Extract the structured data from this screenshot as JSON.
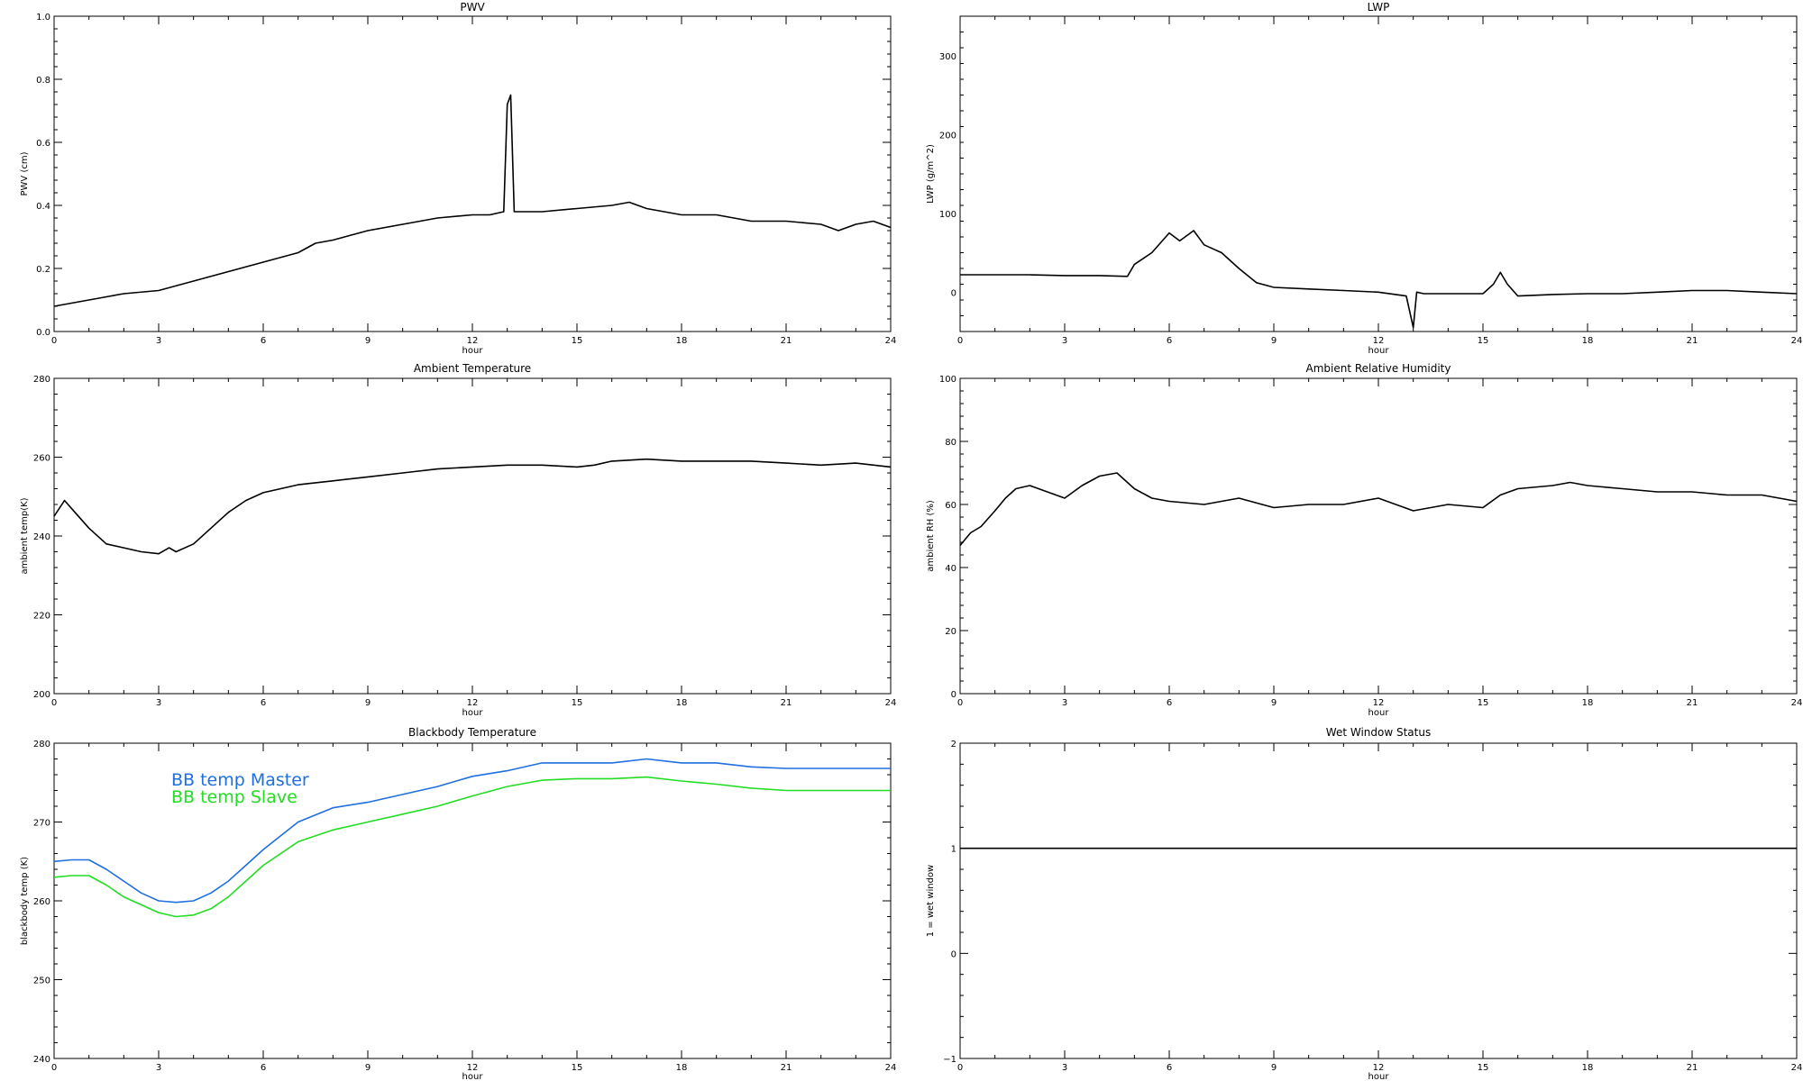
{
  "chart_data": [
    {
      "id": "pwv",
      "type": "line",
      "title": "PWV",
      "xlabel": "hour",
      "ylabel": "PWV (cm)",
      "xlim": [
        0,
        24
      ],
      "ylim": [
        0,
        1
      ],
      "xticks": [
        "0",
        "3",
        "6",
        "9",
        "12",
        "15",
        "18",
        "21",
        "24"
      ],
      "yticks": [
        "0.0",
        "0.2",
        "0.4",
        "0.6",
        "0.8",
        "1.0"
      ],
      "line_color": "#000000",
      "series": [
        {
          "x": [
            0,
            0.5,
            1,
            1.5,
            2,
            3,
            4,
            5,
            6,
            7,
            7.5,
            8,
            9,
            10,
            11,
            12,
            12.5,
            12.9,
            13.0,
            13.1,
            13.2,
            13.5,
            14,
            15,
            16,
            16.5,
            17,
            18,
            19,
            20,
            21,
            22,
            22.5,
            23,
            23.5,
            24
          ],
          "y": [
            0.08,
            0.09,
            0.1,
            0.11,
            0.12,
            0.13,
            0.16,
            0.19,
            0.22,
            0.25,
            0.28,
            0.29,
            0.32,
            0.34,
            0.36,
            0.37,
            0.37,
            0.38,
            0.72,
            0.75,
            0.38,
            0.38,
            0.38,
            0.39,
            0.4,
            0.41,
            0.39,
            0.37,
            0.37,
            0.35,
            0.35,
            0.34,
            0.32,
            0.34,
            0.35,
            0.33
          ]
        }
      ]
    },
    {
      "id": "lwp",
      "type": "line",
      "title": "LWP",
      "xlabel": "hour",
      "ylabel": "LWP (g/m^2)",
      "xlim": [
        0,
        24
      ],
      "ylim": [
        -50,
        350
      ],
      "xticks": [
        "0",
        "3",
        "6",
        "9",
        "12",
        "15",
        "18",
        "21",
        "24"
      ],
      "yticks": [
        "0",
        "100",
        "200",
        "300"
      ],
      "ytick_values": [
        0,
        100,
        200,
        300
      ],
      "line_color": "#000000",
      "series": [
        {
          "x": [
            0,
            1,
            2,
            3,
            4,
            4.8,
            5,
            5.5,
            6,
            6.3,
            6.7,
            7,
            7.5,
            8,
            8.5,
            9,
            10,
            11,
            12,
            12.8,
            13,
            13.1,
            13.3,
            14,
            15,
            15.3,
            15.5,
            15.7,
            16,
            17,
            18,
            19,
            20,
            21,
            22,
            23,
            24
          ],
          "y": [
            22,
            22,
            22,
            21,
            21,
            20,
            35,
            50,
            75,
            65,
            78,
            60,
            50,
            30,
            12,
            6,
            4,
            2,
            0,
            -5,
            -45,
            0,
            -2,
            -2,
            -2,
            10,
            25,
            10,
            -5,
            -3,
            -2,
            -2,
            0,
            2,
            2,
            0,
            -2
          ]
        }
      ]
    },
    {
      "id": "ambient_temp",
      "type": "line",
      "title": "Ambient Temperature",
      "xlabel": "hour",
      "ylabel": "ambient temp(K)",
      "xlim": [
        0,
        24
      ],
      "ylim": [
        200,
        280
      ],
      "xticks": [
        "0",
        "3",
        "6",
        "9",
        "12",
        "15",
        "18",
        "21",
        "24"
      ],
      "yticks": [
        "200",
        "220",
        "240",
        "260",
        "280"
      ],
      "ytick_values": [
        200,
        220,
        240,
        260,
        280
      ],
      "line_color": "#000000",
      "series": [
        {
          "x": [
            0,
            0.3,
            0.6,
            1,
            1.5,
            2,
            2.5,
            3,
            3.3,
            3.5,
            4,
            4.5,
            5,
            5.5,
            6,
            7,
            8,
            9,
            10,
            11,
            12,
            13,
            14,
            15,
            15.5,
            16,
            17,
            18,
            19,
            20,
            21,
            22,
            23,
            24
          ],
          "y": [
            245,
            249,
            246,
            242,
            238,
            237,
            236,
            235.5,
            237,
            236,
            238,
            242,
            246,
            249,
            251,
            253,
            254,
            255,
            256,
            257,
            257.5,
            258,
            258,
            257.5,
            258,
            259,
            259.5,
            259,
            259,
            259,
            258.5,
            258,
            258.5,
            257.5
          ]
        }
      ]
    },
    {
      "id": "ambient_rh",
      "type": "line",
      "title": "Ambient Relative Humidity",
      "xlabel": "hour",
      "ylabel": "ambient RH (%)",
      "xlim": [
        0,
        24
      ],
      "ylim": [
        0,
        100
      ],
      "xticks": [
        "0",
        "3",
        "6",
        "9",
        "12",
        "15",
        "18",
        "21",
        "24"
      ],
      "yticks": [
        "0",
        "20",
        "40",
        "60",
        "80",
        "100"
      ],
      "ytick_values": [
        0,
        20,
        40,
        60,
        80,
        100
      ],
      "line_color": "#000000",
      "series": [
        {
          "x": [
            0,
            0.3,
            0.6,
            1,
            1.3,
            1.6,
            2,
            2.5,
            3,
            3.5,
            4,
            4.5,
            5,
            5.5,
            6,
            7,
            8,
            9,
            10,
            11,
            12,
            12.5,
            13,
            13.5,
            14,
            15,
            15.5,
            16,
            17,
            17.5,
            18,
            19,
            20,
            21,
            22,
            23,
            24
          ],
          "y": [
            47,
            51,
            53,
            58,
            62,
            65,
            66,
            64,
            62,
            66,
            69,
            70,
            65,
            62,
            61,
            60,
            62,
            59,
            60,
            60,
            62,
            60,
            58,
            59,
            60,
            59,
            63,
            65,
            66,
            67,
            66,
            65,
            64,
            64,
            63,
            63,
            61
          ]
        }
      ]
    },
    {
      "id": "bb_temp",
      "type": "line",
      "title": "Blackbody Temperature",
      "xlabel": "hour",
      "ylabel": "blackbody temp (K)",
      "xlim": [
        0,
        24
      ],
      "ylim": [
        240,
        280
      ],
      "xticks": [
        "0",
        "3",
        "6",
        "9",
        "12",
        "15",
        "18",
        "21",
        "24"
      ],
      "yticks": [
        "240",
        "250",
        "260",
        "270",
        "280"
      ],
      "ytick_values": [
        240,
        250,
        260,
        270,
        280
      ],
      "legend": [
        "BB temp Master",
        "BB temp Slave"
      ],
      "series": [
        {
          "name": "BB temp Master",
          "color": "#1f6fe0",
          "x": [
            0,
            0.5,
            1,
            1.5,
            2,
            2.5,
            3,
            3.5,
            4,
            4.5,
            5,
            5.5,
            6,
            7,
            8,
            9,
            10,
            11,
            12,
            13,
            14,
            15,
            16,
            17,
            18,
            19,
            20,
            21,
            22,
            23,
            24
          ],
          "y": [
            265,
            265.2,
            265.2,
            264,
            262.5,
            261,
            260,
            259.8,
            260,
            261,
            262.5,
            264.5,
            266.5,
            270,
            271.8,
            272.5,
            273.5,
            274.5,
            275.8,
            276.5,
            277.5,
            277.5,
            277.5,
            278,
            277.5,
            277.5,
            277,
            276.8,
            276.8,
            276.8,
            276.8
          ]
        },
        {
          "name": "BB temp Slave",
          "color": "#22dd22",
          "x": [
            0,
            0.5,
            1,
            1.5,
            2,
            2.5,
            3,
            3.5,
            4,
            4.5,
            5,
            5.5,
            6,
            7,
            8,
            9,
            10,
            11,
            12,
            13,
            14,
            15,
            16,
            17,
            18,
            19,
            20,
            21,
            22,
            23,
            24
          ],
          "y": [
            263,
            263.2,
            263.2,
            262,
            260.5,
            259.5,
            258.5,
            258,
            258.2,
            259,
            260.5,
            262.5,
            264.5,
            267.5,
            269,
            270,
            271,
            272,
            273.3,
            274.5,
            275.3,
            275.5,
            275.5,
            275.7,
            275.2,
            274.8,
            274.3,
            274,
            274,
            274,
            274
          ]
        }
      ]
    },
    {
      "id": "wet_window",
      "type": "line",
      "title": "Wet Window Status",
      "xlabel": "hour",
      "ylabel": "1 = wet window",
      "xlim": [
        0,
        24
      ],
      "ylim": [
        -1,
        2
      ],
      "xticks": [
        "0",
        "3",
        "6",
        "9",
        "12",
        "15",
        "18",
        "21",
        "24"
      ],
      "yticks": [
        "−1",
        "0",
        "1",
        "2"
      ],
      "ytick_values": [
        -1,
        0,
        1,
        2
      ],
      "line_color": "#000000",
      "series": [
        {
          "x": [
            0,
            24
          ],
          "y": [
            1,
            1
          ]
        }
      ]
    }
  ]
}
